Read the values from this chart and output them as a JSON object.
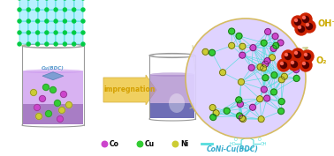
{
  "bg_color": "#ffffff",
  "arrow_color": "#f0d060",
  "arrow_edge": "#d4b040",
  "impregn_text": "impregnation",
  "impregn_color": "#d4a000",
  "cobdc_text": "Cu(BDC)",
  "cobdc_color": "#5599cc",
  "conibdc_text": "CoNi-Cu(BDC)",
  "conibdc_color": "#33aacc",
  "oh_text": "OH⁻",
  "oh_color": "#ccaa00",
  "o2_text": "O₂",
  "o2_color": "#ccaa00",
  "co_label": "Co",
  "cu_label": "Cu",
  "ni_label": "Ni",
  "co_color": "#cc44cc",
  "cu_color": "#33cc33",
  "ni_color": "#cccc33",
  "link_color": "#55dddd",
  "mof_fill": "#aaeeff",
  "mof_edge": "#00cccc",
  "mof_node": "#00cc44",
  "mof_bg": "#ddd0ff",
  "mof_border": "#d4b855",
  "red_ball": "#cc2200",
  "dark_red": "#550000",
  "beaker_edge": "#999999",
  "liquid1": "#bb88dd",
  "liquid2a": "#9988cc",
  "liquid2b": "#5566bb",
  "spot_white": "#ffffff"
}
